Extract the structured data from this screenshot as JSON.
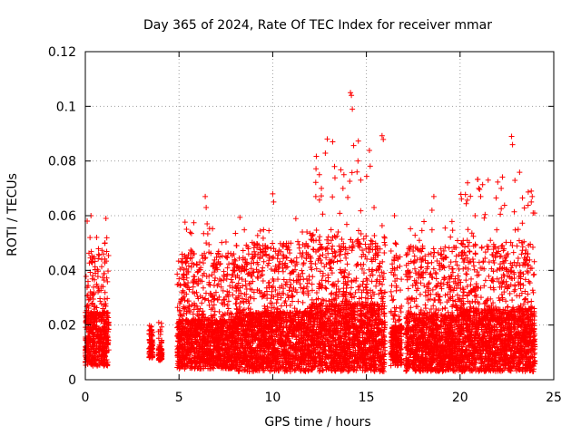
{
  "chart_data": {
    "type": "scatter",
    "title": "Day 365 of 2024, Rate Of TEC Index for receiver mmar",
    "xlabel": "GPS time / hours",
    "ylabel": "ROTI / TECUs",
    "xlim": [
      0,
      25
    ],
    "ylim": [
      0,
      0.12
    ],
    "xticks": [
      0,
      5,
      10,
      15,
      20,
      25
    ],
    "xtick_labels": [
      "0",
      "5",
      "10",
      "15",
      "20",
      "25"
    ],
    "yticks": [
      0,
      0.02,
      0.04,
      0.06,
      0.08,
      0.1,
      0.12
    ],
    "ytick_labels": [
      "0",
      "0.02",
      "0.04",
      "0.06",
      "0.08",
      "0.1",
      "0.12"
    ],
    "grid": true,
    "marker": "+",
    "color": "#ff0000",
    "series": [
      {
        "name": "ROTI",
        "segments": [
          {
            "x_start": 0.0,
            "x_end": 1.25,
            "base_low": 0.005,
            "base_high": 0.025,
            "peak": 0.06
          },
          {
            "x_start": 3.4,
            "x_end": 3.6,
            "base_low": 0.008,
            "base_high": 0.015,
            "peak": 0.02
          },
          {
            "x_start": 3.9,
            "x_end": 4.1,
            "base_low": 0.007,
            "base_high": 0.012,
            "peak": 0.021
          },
          {
            "x_start": 4.9,
            "x_end": 8.0,
            "base_low": 0.004,
            "base_high": 0.022,
            "peak": 0.067
          },
          {
            "x_start": 8.0,
            "x_end": 12.0,
            "base_low": 0.003,
            "base_high": 0.025,
            "peak": 0.068
          },
          {
            "x_start": 12.0,
            "x_end": 16.0,
            "base_low": 0.003,
            "base_high": 0.028,
            "peak": 0.105
          },
          {
            "x_start": 16.3,
            "x_end": 16.9,
            "base_low": 0.005,
            "base_high": 0.02,
            "peak": 0.06
          },
          {
            "x_start": 17.1,
            "x_end": 20.0,
            "base_low": 0.003,
            "base_high": 0.024,
            "peak": 0.067
          },
          {
            "x_start": 20.0,
            "x_end": 24.0,
            "base_low": 0.003,
            "base_high": 0.026,
            "peak": 0.089
          }
        ],
        "highlights": [
          {
            "x": 0.1,
            "y": 0.058
          },
          {
            "x": 0.3,
            "y": 0.06
          },
          {
            "x": 0.25,
            "y": 0.052
          },
          {
            "x": 1.1,
            "y": 0.059
          },
          {
            "x": 1.05,
            "y": 0.05
          },
          {
            "x": 6.4,
            "y": 0.067
          },
          {
            "x": 6.45,
            "y": 0.063
          },
          {
            "x": 6.5,
            "y": 0.057
          },
          {
            "x": 6.45,
            "y": 0.05
          },
          {
            "x": 10.0,
            "y": 0.068
          },
          {
            "x": 10.05,
            "y": 0.065
          },
          {
            "x": 12.3,
            "y": 0.067
          },
          {
            "x": 12.6,
            "y": 0.07
          },
          {
            "x": 13.2,
            "y": 0.087
          },
          {
            "x": 13.3,
            "y": 0.078
          },
          {
            "x": 13.75,
            "y": 0.07
          },
          {
            "x": 13.8,
            "y": 0.075
          },
          {
            "x": 14.15,
            "y": 0.105
          },
          {
            "x": 14.2,
            "y": 0.104
          },
          {
            "x": 14.25,
            "y": 0.099
          },
          {
            "x": 14.55,
            "y": 0.08
          },
          {
            "x": 14.5,
            "y": 0.076
          },
          {
            "x": 14.7,
            "y": 0.073
          },
          {
            "x": 16.5,
            "y": 0.06
          },
          {
            "x": 16.55,
            "y": 0.05
          },
          {
            "x": 18.6,
            "y": 0.067
          },
          {
            "x": 18.5,
            "y": 0.062
          },
          {
            "x": 20.4,
            "y": 0.072
          },
          {
            "x": 21.0,
            "y": 0.07
          },
          {
            "x": 21.5,
            "y": 0.073
          },
          {
            "x": 21.1,
            "y": 0.067
          },
          {
            "x": 20.8,
            "y": 0.06
          },
          {
            "x": 22.75,
            "y": 0.089
          },
          {
            "x": 22.8,
            "y": 0.086
          },
          {
            "x": 23.1,
            "y": 0.055
          },
          {
            "x": 23.8,
            "y": 0.069
          },
          {
            "x": 23.85,
            "y": 0.067
          },
          {
            "x": 23.9,
            "y": 0.061
          },
          {
            "x": 23.8,
            "y": 0.065
          }
        ]
      }
    ]
  }
}
